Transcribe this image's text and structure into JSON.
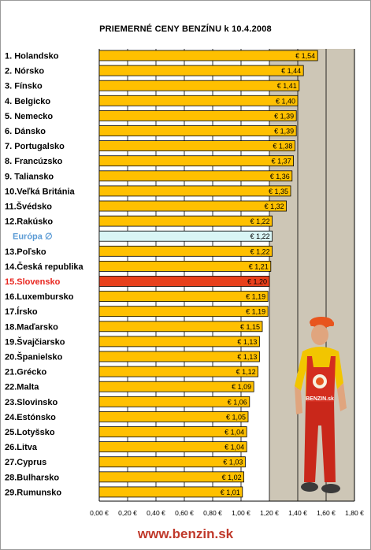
{
  "title": "PRIEMERNÉ CENY BENZÍNU k 10.4.2008",
  "footer": "www.benzin.sk",
  "colors": {
    "bar": "#ffc000",
    "highlight_bar": "#e8401c",
    "europe_bar": "#d9f5f5",
    "plot_background": "#cdc6b6",
    "highlight_label": "#e8261f",
    "europe_label": "#5b9bd5",
    "footer": "#c0392b"
  },
  "chart_data": {
    "type": "bar",
    "orientation": "horizontal",
    "x_min": 0,
    "x_max": 1.8,
    "x_step": 0.2,
    "x_tick_labels": [
      "0,00 €",
      "0,20 €",
      "0,40 €",
      "0,60 €",
      "0,80 €",
      "1,00 €",
      "1,20 €",
      "1,40 €",
      "1,60 €",
      "1,80 €"
    ],
    "grid": "vertical",
    "categories": [
      {
        "label": "1. Holandsko",
        "value": 1.54,
        "value_label": "€ 1,54"
      },
      {
        "label": "2. Nórsko",
        "value": 1.44,
        "value_label": "€ 1,44"
      },
      {
        "label": "3. Fínsko",
        "value": 1.41,
        "value_label": "€ 1,41"
      },
      {
        "label": "4. Belgicko",
        "value": 1.4,
        "value_label": "€ 1,40"
      },
      {
        "label": "5. Nemecko",
        "value": 1.39,
        "value_label": "€ 1,39"
      },
      {
        "label": "6. Dánsko",
        "value": 1.39,
        "value_label": "€ 1,39"
      },
      {
        "label": "7. Portugalsko",
        "value": 1.38,
        "value_label": "€ 1,38"
      },
      {
        "label": "8. Francúzsko",
        "value": 1.37,
        "value_label": "€ 1,37"
      },
      {
        "label": "9. Taliansko",
        "value": 1.36,
        "value_label": "€ 1,36"
      },
      {
        "label": "10.Veľká Británia",
        "value": 1.35,
        "value_label": "€ 1,35"
      },
      {
        "label": "11.Švédsko",
        "value": 1.32,
        "value_label": "€ 1,32"
      },
      {
        "label": "12.Rakúsko",
        "value": 1.22,
        "value_label": "€ 1,22"
      },
      {
        "label": "Európa ∅",
        "value": 1.22,
        "value_label": "€ 1,22",
        "kind": "europe"
      },
      {
        "label": "13.Poľsko",
        "value": 1.22,
        "value_label": "€ 1,22"
      },
      {
        "label": "14.Česká republika",
        "value": 1.21,
        "value_label": "€ 1,21"
      },
      {
        "label": "15.Slovensko",
        "value": 1.2,
        "value_label": "€ 1,20",
        "kind": "highlight"
      },
      {
        "label": "16.Luxembursko",
        "value": 1.19,
        "value_label": "€ 1,19"
      },
      {
        "label": "17.Írsko",
        "value": 1.19,
        "value_label": "€ 1,19"
      },
      {
        "label": "18.Maďarsko",
        "value": 1.15,
        "value_label": "€ 1,15"
      },
      {
        "label": "19.Švajčiarsko",
        "value": 1.13,
        "value_label": "€ 1,13"
      },
      {
        "label": "20.Španielsko",
        "value": 1.13,
        "value_label": "€ 1,13"
      },
      {
        "label": "21.Grécko",
        "value": 1.12,
        "value_label": "€ 1,12"
      },
      {
        "label": "22.Malta",
        "value": 1.09,
        "value_label": "€ 1,09"
      },
      {
        "label": "23.Slovinsko",
        "value": 1.06,
        "value_label": "€ 1,06"
      },
      {
        "label": "24.Estónsko",
        "value": 1.05,
        "value_label": "€ 1,05"
      },
      {
        "label": "25.Lotyšsko",
        "value": 1.04,
        "value_label": "€ 1,04"
      },
      {
        "label": "26.Litva",
        "value": 1.04,
        "value_label": "€ 1,04"
      },
      {
        "label": "27.Cyprus",
        "value": 1.03,
        "value_label": "€ 1,03"
      },
      {
        "label": "28.Bulharsko",
        "value": 1.02,
        "value_label": "€ 1,02"
      },
      {
        "label": "29.Rumunsko",
        "value": 1.01,
        "value_label": "€ 1,01"
      }
    ]
  },
  "mascot": {
    "icon": "gas-station-attendant-mascot",
    "logo_text": "BENZIN.sk"
  }
}
